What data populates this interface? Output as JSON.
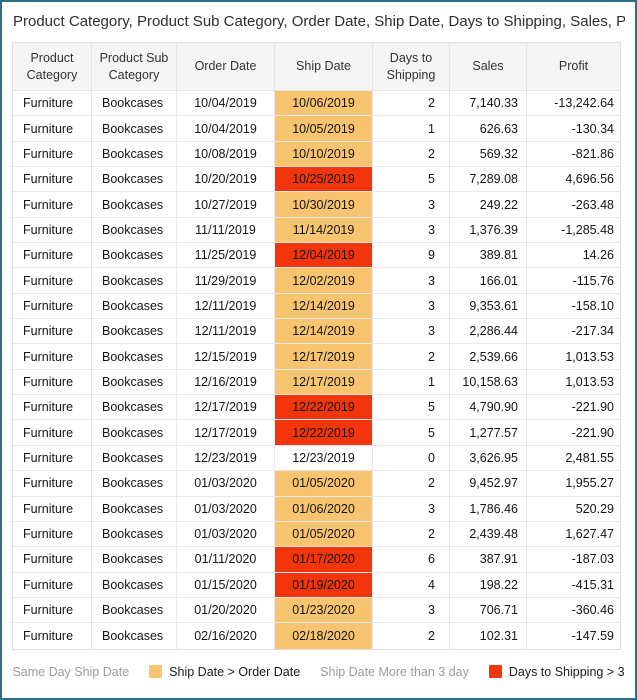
{
  "title": "Product Category, Product Sub Category, Order Date, Ship Date, Days to Shipping, Sales, Pr...",
  "colors": {
    "frame_border": "#2b6f8c",
    "orange_highlight": "#f9c46f",
    "red_highlight": "#f2350c",
    "header_bg": "#f5f5f5",
    "muted_text": "#9b9b9b"
  },
  "table": {
    "columns": [
      "Product Category",
      "Product Sub Category",
      "Order Date",
      "Ship Date",
      "Days to Shipping",
      "Sales",
      "Profit"
    ],
    "rows": [
      {
        "category": "Furniture",
        "subcategory": "Bookcases",
        "order_date": "10/04/2019",
        "ship_date": "10/06/2019",
        "ship_highlight": "orange",
        "days_to_shipping": "2",
        "sales": "7,140.33",
        "profit": "-13,242.64"
      },
      {
        "category": "Furniture",
        "subcategory": "Bookcases",
        "order_date": "10/04/2019",
        "ship_date": "10/05/2019",
        "ship_highlight": "orange",
        "days_to_shipping": "1",
        "sales": "626.63",
        "profit": "-130.34"
      },
      {
        "category": "Furniture",
        "subcategory": "Bookcases",
        "order_date": "10/08/2019",
        "ship_date": "10/10/2019",
        "ship_highlight": "orange",
        "days_to_shipping": "2",
        "sales": "569.32",
        "profit": "-821.86"
      },
      {
        "category": "Furniture",
        "subcategory": "Bookcases",
        "order_date": "10/20/2019",
        "ship_date": "10/25/2019",
        "ship_highlight": "red",
        "days_to_shipping": "5",
        "sales": "7,289.08",
        "profit": "4,696.56"
      },
      {
        "category": "Furniture",
        "subcategory": "Bookcases",
        "order_date": "10/27/2019",
        "ship_date": "10/30/2019",
        "ship_highlight": "orange",
        "days_to_shipping": "3",
        "sales": "249.22",
        "profit": "-263.48"
      },
      {
        "category": "Furniture",
        "subcategory": "Bookcases",
        "order_date": "11/11/2019",
        "ship_date": "11/14/2019",
        "ship_highlight": "orange",
        "days_to_shipping": "3",
        "sales": "1,376.39",
        "profit": "-1,285.48"
      },
      {
        "category": "Furniture",
        "subcategory": "Bookcases",
        "order_date": "11/25/2019",
        "ship_date": "12/04/2019",
        "ship_highlight": "red",
        "days_to_shipping": "9",
        "sales": "389.81",
        "profit": "14.26"
      },
      {
        "category": "Furniture",
        "subcategory": "Bookcases",
        "order_date": "11/29/2019",
        "ship_date": "12/02/2019",
        "ship_highlight": "orange",
        "days_to_shipping": "3",
        "sales": "166.01",
        "profit": "-115.76"
      },
      {
        "category": "Furniture",
        "subcategory": "Bookcases",
        "order_date": "12/11/2019",
        "ship_date": "12/14/2019",
        "ship_highlight": "orange",
        "days_to_shipping": "3",
        "sales": "9,353.61",
        "profit": "-158.10"
      },
      {
        "category": "Furniture",
        "subcategory": "Bookcases",
        "order_date": "12/11/2019",
        "ship_date": "12/14/2019",
        "ship_highlight": "orange",
        "days_to_shipping": "3",
        "sales": "2,286.44",
        "profit": "-217.34"
      },
      {
        "category": "Furniture",
        "subcategory": "Bookcases",
        "order_date": "12/15/2019",
        "ship_date": "12/17/2019",
        "ship_highlight": "orange",
        "days_to_shipping": "2",
        "sales": "2,539.66",
        "profit": "1,013.53"
      },
      {
        "category": "Furniture",
        "subcategory": "Bookcases",
        "order_date": "12/16/2019",
        "ship_date": "12/17/2019",
        "ship_highlight": "orange",
        "days_to_shipping": "1",
        "sales": "10,158.63",
        "profit": "1,013.53"
      },
      {
        "category": "Furniture",
        "subcategory": "Bookcases",
        "order_date": "12/17/2019",
        "ship_date": "12/22/2019",
        "ship_highlight": "red",
        "days_to_shipping": "5",
        "sales": "4,790.90",
        "profit": "-221.90"
      },
      {
        "category": "Furniture",
        "subcategory": "Bookcases",
        "order_date": "12/17/2019",
        "ship_date": "12/22/2019",
        "ship_highlight": "red",
        "days_to_shipping": "5",
        "sales": "1,277.57",
        "profit": "-221.90"
      },
      {
        "category": "Furniture",
        "subcategory": "Bookcases",
        "order_date": "12/23/2019",
        "ship_date": "12/23/2019",
        "ship_highlight": "none",
        "days_to_shipping": "0",
        "sales": "3,626.95",
        "profit": "2,481.55"
      },
      {
        "category": "Furniture",
        "subcategory": "Bookcases",
        "order_date": "01/03/2020",
        "ship_date": "01/05/2020",
        "ship_highlight": "orange",
        "days_to_shipping": "2",
        "sales": "9,452.97",
        "profit": "1,955.27"
      },
      {
        "category": "Furniture",
        "subcategory": "Bookcases",
        "order_date": "01/03/2020",
        "ship_date": "01/06/2020",
        "ship_highlight": "orange",
        "days_to_shipping": "3",
        "sales": "1,786.46",
        "profit": "520.29"
      },
      {
        "category": "Furniture",
        "subcategory": "Bookcases",
        "order_date": "01/03/2020",
        "ship_date": "01/05/2020",
        "ship_highlight": "orange",
        "days_to_shipping": "2",
        "sales": "2,439.48",
        "profit": "1,627.47"
      },
      {
        "category": "Furniture",
        "subcategory": "Bookcases",
        "order_date": "01/11/2020",
        "ship_date": "01/17/2020",
        "ship_highlight": "red",
        "days_to_shipping": "6",
        "sales": "387.91",
        "profit": "-187.03"
      },
      {
        "category": "Furniture",
        "subcategory": "Bookcases",
        "order_date": "01/15/2020",
        "ship_date": "01/19/2020",
        "ship_highlight": "red",
        "days_to_shipping": "4",
        "sales": "198.22",
        "profit": "-415.31"
      },
      {
        "category": "Furniture",
        "subcategory": "Bookcases",
        "order_date": "01/20/2020",
        "ship_date": "01/23/2020",
        "ship_highlight": "orange",
        "days_to_shipping": "3",
        "sales": "706.71",
        "profit": "-360.46"
      },
      {
        "category": "Furniture",
        "subcategory": "Bookcases",
        "order_date": "02/16/2020",
        "ship_date": "02/18/2020",
        "ship_highlight": "orange",
        "days_to_shipping": "2",
        "sales": "102.31",
        "profit": "-147.59"
      }
    ]
  },
  "legend": {
    "items": [
      {
        "label": "Same Day Ship Date",
        "swatch": null,
        "muted": true
      },
      {
        "label": "Ship Date > Order Date",
        "swatch": "#f9c46f",
        "muted": false
      },
      {
        "label": "Ship Date More than 3 day",
        "swatch": null,
        "muted": true
      },
      {
        "label": "Days to Shipping > 3",
        "swatch": "#f2350c",
        "muted": false
      }
    ]
  }
}
